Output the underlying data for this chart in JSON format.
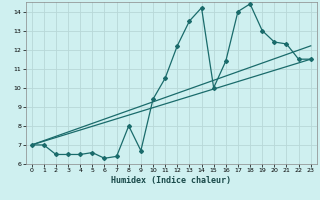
{
  "title": "",
  "xlabel": "Humidex (Indice chaleur)",
  "xlim": [
    -0.5,
    23.5
  ],
  "ylim": [
    6,
    14.5
  ],
  "yticks": [
    6,
    7,
    8,
    9,
    10,
    11,
    12,
    13,
    14
  ],
  "xticks": [
    0,
    1,
    2,
    3,
    4,
    5,
    6,
    7,
    8,
    9,
    10,
    11,
    12,
    13,
    14,
    15,
    16,
    17,
    18,
    19,
    20,
    21,
    22,
    23
  ],
  "bg_color": "#cff0f0",
  "grid_color": "#b8d8d8",
  "line_color": "#1a6b6b",
  "series1_x": [
    0,
    1,
    2,
    3,
    4,
    5,
    6,
    7,
    8,
    9,
    10,
    11,
    12,
    13,
    14,
    15,
    16,
    17,
    18,
    19,
    20,
    21,
    22,
    23
  ],
  "series1_y": [
    7.0,
    7.0,
    6.5,
    6.5,
    6.5,
    6.6,
    6.3,
    6.4,
    8.0,
    6.7,
    9.4,
    10.5,
    12.2,
    13.5,
    14.2,
    10.0,
    11.4,
    14.0,
    14.4,
    13.0,
    12.4,
    12.3,
    11.5,
    11.5
  ],
  "series2_x": [
    0,
    23
  ],
  "series2_y": [
    7.0,
    11.5
  ],
  "series3_x": [
    0,
    23
  ],
  "series3_y": [
    7.0,
    12.2
  ]
}
